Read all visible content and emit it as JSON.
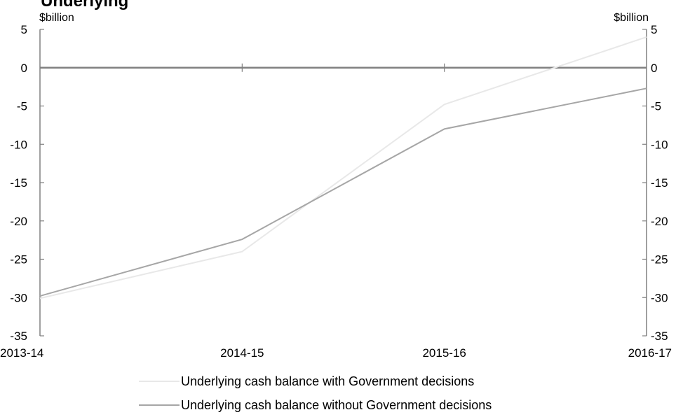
{
  "chart_data": {
    "type": "line",
    "title": "Underlying",
    "ylabel_left": "$billion",
    "ylabel_right": "$billion",
    "categories": [
      "2013-14",
      "2014-15",
      "2015-16",
      "2016-17"
    ],
    "ylim": [
      -35,
      5
    ],
    "yticks": [
      5,
      0,
      -5,
      -10,
      -15,
      -20,
      -25,
      -30,
      -35
    ],
    "series": [
      {
        "name": "Underlying cash balance with Government decisions",
        "color": "#e8e8e8",
        "values": [
          -30.1,
          -24.0,
          -4.8,
          4.0
        ]
      },
      {
        "name": "Underlying cash balance without Government decisions",
        "color": "#a6a6a6",
        "values": [
          -29.8,
          -22.4,
          -8.0,
          -2.7
        ]
      }
    ],
    "zero_line_color": "#808080"
  }
}
